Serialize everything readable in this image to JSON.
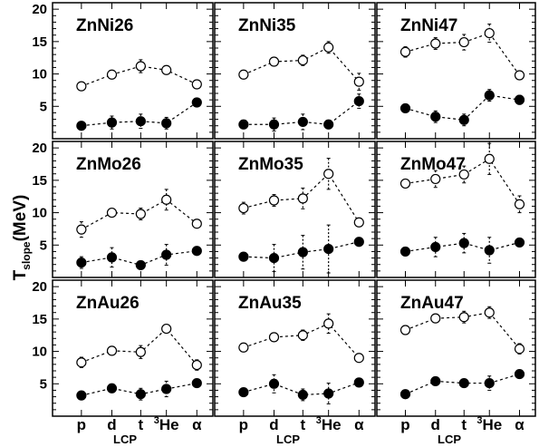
{
  "figure": {
    "ylabel_main": "T",
    "ylabel_sub": "slope",
    "ylabel_unit": "(MeV)",
    "xlabel": "LCP",
    "categories": [
      "p",
      "d",
      "t",
      "He",
      "α"
    ],
    "he_prefix": "3",
    "yticks": [
      "5",
      "10",
      "15",
      "20"
    ]
  },
  "chart_data": [
    {
      "type": "scatter",
      "title": "ZnNi26",
      "categories": [
        "p",
        "d",
        "t",
        "3He",
        "α"
      ],
      "ylim": [
        0,
        21
      ],
      "series": [
        {
          "marker": "open",
          "values": [
            8.1,
            9.9,
            11.2,
            10.6,
            8.4
          ],
          "errors": [
            0.4,
            0.5,
            1.0,
            0.5,
            0.5
          ]
        },
        {
          "marker": "filled",
          "values": [
            2.0,
            2.5,
            2.7,
            2.4,
            5.6
          ],
          "errors": [
            0.3,
            1.0,
            1.1,
            0.9,
            0.4
          ]
        }
      ]
    },
    {
      "type": "scatter",
      "title": "ZnNi35",
      "categories": [
        "p",
        "d",
        "t",
        "3He",
        "α"
      ],
      "ylim": [
        0,
        21
      ],
      "series": [
        {
          "marker": "open",
          "values": [
            9.9,
            11.9,
            12.1,
            14.1,
            8.8
          ],
          "errors": [
            0.4,
            0.6,
            0.8,
            0.9,
            1.3
          ]
        },
        {
          "marker": "filled",
          "values": [
            2.2,
            2.2,
            2.6,
            2.2,
            5.8
          ],
          "errors": [
            0.4,
            1.0,
            1.2,
            0.4,
            1.1
          ]
        }
      ]
    },
    {
      "type": "scatter",
      "title": "ZnNi47",
      "categories": [
        "p",
        "d",
        "t",
        "3He",
        "α"
      ],
      "ylim": [
        0,
        21
      ],
      "series": [
        {
          "marker": "open",
          "values": [
            13.4,
            14.7,
            14.9,
            16.3,
            9.8
          ],
          "errors": [
            0.8,
            0.9,
            1.2,
            1.4,
            0.4
          ]
        },
        {
          "marker": "filled",
          "values": [
            4.7,
            3.4,
            2.9,
            6.7,
            6.0
          ],
          "errors": [
            0.4,
            0.9,
            0.9,
            0.9,
            0.7
          ]
        }
      ]
    },
    {
      "type": "scatter",
      "title": "ZnMo26",
      "categories": [
        "p",
        "d",
        "t",
        "3He",
        "α"
      ],
      "ylim": [
        0,
        21
      ],
      "series": [
        {
          "marker": "open",
          "values": [
            7.4,
            10.0,
            9.8,
            12.0,
            8.3
          ],
          "errors": [
            1.2,
            0.4,
            0.9,
            1.6,
            0.4
          ]
        },
        {
          "marker": "filled",
          "values": [
            2.3,
            3.1,
            1.9,
            3.5,
            4.1
          ],
          "errors": [
            0.9,
            1.5,
            0.3,
            1.6,
            0.4
          ]
        }
      ]
    },
    {
      "type": "scatter",
      "title": "ZnMo35",
      "categories": [
        "p",
        "d",
        "t",
        "3He",
        "α"
      ],
      "ylim": [
        0,
        21
      ],
      "series": [
        {
          "marker": "open",
          "values": [
            10.7,
            11.9,
            12.2,
            16.0,
            8.5
          ],
          "errors": [
            0.9,
            0.9,
            1.6,
            2.4,
            0.3
          ]
        },
        {
          "marker": "filled",
          "values": [
            3.2,
            3.0,
            3.9,
            4.4,
            5.5
          ],
          "errors": [
            0.3,
            2.1,
            2.6,
            3.7,
            0.3
          ]
        }
      ]
    },
    {
      "type": "scatter",
      "title": "ZnMo47",
      "categories": [
        "p",
        "d",
        "t",
        "3He",
        "α"
      ],
      "ylim": [
        0,
        21
      ],
      "series": [
        {
          "marker": "open",
          "values": [
            14.5,
            15.2,
            15.9,
            18.3,
            11.3
          ],
          "errors": [
            0.4,
            1.3,
            1.3,
            2.4,
            1.3
          ]
        },
        {
          "marker": "filled",
          "values": [
            4.0,
            4.7,
            5.3,
            4.2,
            5.4
          ],
          "errors": [
            0.4,
            1.5,
            1.5,
            2.0,
            0.4
          ]
        }
      ]
    },
    {
      "type": "scatter",
      "title": "ZnAu26",
      "categories": [
        "p",
        "d",
        "t",
        "3He",
        "α"
      ],
      "ylim": [
        0,
        21
      ],
      "series": [
        {
          "marker": "open",
          "values": [
            8.3,
            10.1,
            9.9,
            13.5,
            7.9
          ],
          "errors": [
            0.8,
            0.4,
            1.0,
            0.4,
            0.8
          ]
        },
        {
          "marker": "filled",
          "values": [
            3.2,
            4.3,
            3.4,
            4.2,
            5.1
          ],
          "errors": [
            0.4,
            0.4,
            0.9,
            1.2,
            0.4
          ]
        }
      ]
    },
    {
      "type": "scatter",
      "title": "ZnAu35",
      "categories": [
        "p",
        "d",
        "t",
        "3He",
        "α"
      ],
      "ylim": [
        0,
        21
      ],
      "series": [
        {
          "marker": "open",
          "values": [
            10.6,
            12.2,
            12.5,
            14.3,
            9.0
          ],
          "errors": [
            0.4,
            0.4,
            0.8,
            1.5,
            0.4
          ]
        },
        {
          "marker": "filled",
          "values": [
            3.7,
            5.0,
            3.3,
            3.5,
            5.2
          ],
          "errors": [
            0.4,
            1.4,
            0.9,
            1.6,
            0.4
          ]
        }
      ]
    },
    {
      "type": "scatter",
      "title": "ZnAu47",
      "categories": [
        "p",
        "d",
        "t",
        "3He",
        "α"
      ],
      "ylim": [
        0,
        21
      ],
      "series": [
        {
          "marker": "open",
          "values": [
            13.3,
            15.1,
            15.3,
            16.0,
            10.4
          ],
          "errors": [
            0.7,
            0.4,
            0.9,
            0.9,
            0.8
          ]
        },
        {
          "marker": "filled",
          "values": [
            3.4,
            5.4,
            5.1,
            5.1,
            6.5
          ],
          "errors": [
            0.4,
            0.4,
            0.4,
            1.1,
            0.4
          ]
        }
      ]
    }
  ]
}
